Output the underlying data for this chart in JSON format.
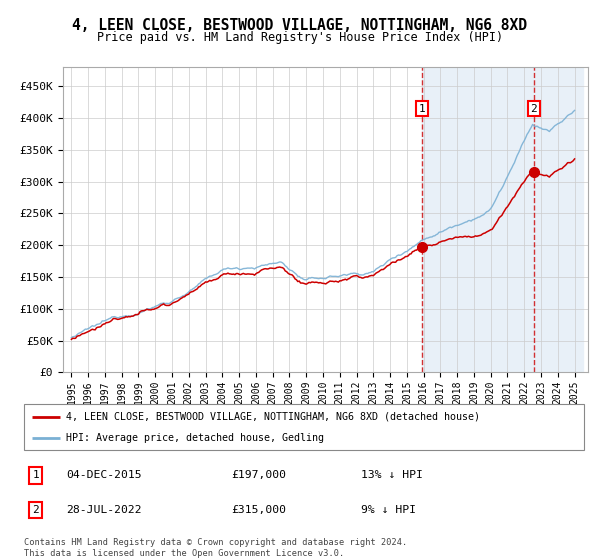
{
  "title": "4, LEEN CLOSE, BESTWOOD VILLAGE, NOTTINGHAM, NG6 8XD",
  "subtitle": "Price paid vs. HM Land Registry's House Price Index (HPI)",
  "background_color": "#ffffff",
  "plot_bg_color": "#ffffff",
  "grid_color": "#cccccc",
  "highlight_bg": "#e8f0f8",
  "ylim": [
    0,
    480000
  ],
  "yticks": [
    0,
    50000,
    100000,
    150000,
    200000,
    250000,
    300000,
    350000,
    400000,
    450000
  ],
  "ytick_labels": [
    "£0",
    "£50K",
    "£100K",
    "£150K",
    "£200K",
    "£250K",
    "£300K",
    "£350K",
    "£400K",
    "£450K"
  ],
  "hpi_color": "#7ab0d4",
  "property_color": "#cc0000",
  "sale1_date": 2015.92,
  "sale1_price": 197000,
  "sale2_date": 2022.57,
  "sale2_price": 315000,
  "legend_property": "4, LEEN CLOSE, BESTWOOD VILLAGE, NOTTINGHAM, NG6 8XD (detached house)",
  "legend_hpi": "HPI: Average price, detached house, Gedling",
  "table_row1": [
    "1",
    "04-DEC-2015",
    "£197,000",
    "13% ↓ HPI"
  ],
  "table_row2": [
    "2",
    "28-JUL-2022",
    "£315,000",
    "9% ↓ HPI"
  ],
  "footnote": "Contains HM Land Registry data © Crown copyright and database right 2024.\nThis data is licensed under the Open Government Licence v3.0."
}
